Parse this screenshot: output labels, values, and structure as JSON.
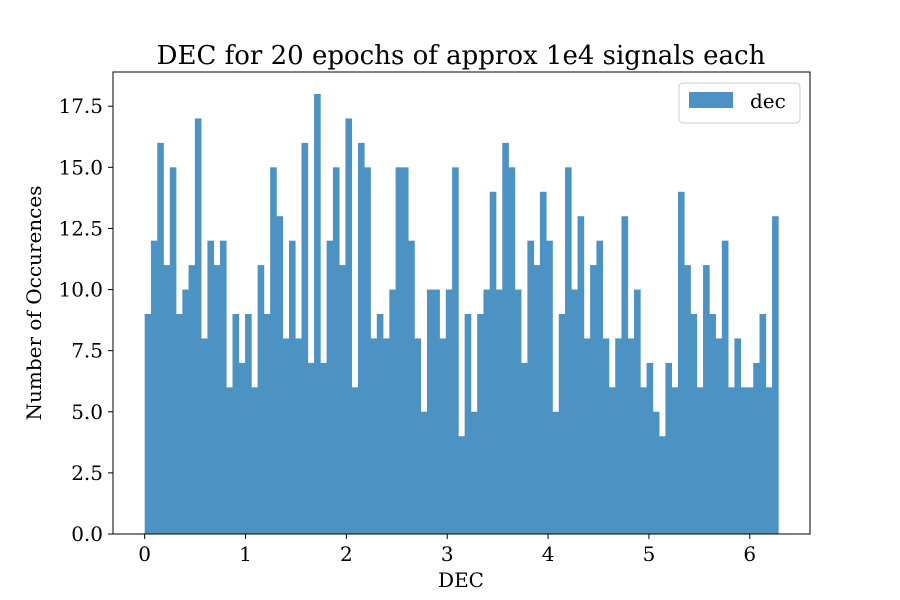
{
  "chart_data": {
    "type": "bar",
    "title": "DEC for 20 epochs of approx 1e4 signals each",
    "xlabel": "DEC",
    "ylabel": "Number of Occurences",
    "xlim": [
      -0.314,
      6.597
    ],
    "ylim": [
      0,
      18.9
    ],
    "x_ticks": [
      "0",
      "1",
      "2",
      "3",
      "4",
      "5",
      "6"
    ],
    "y_ticks": [
      "0.0",
      "2.5",
      "5.0",
      "7.5",
      "10.0",
      "12.5",
      "15.0",
      "17.5"
    ],
    "grid": false,
    "legend_position": "top-right",
    "bin_start": 0.0,
    "bin_end": 6.283,
    "series": [
      {
        "name": "dec",
        "color": "#4c93c4",
        "values": [
          9,
          12,
          16,
          11,
          15,
          9,
          10,
          11,
          17,
          8,
          12,
          11,
          12,
          6,
          9,
          7,
          9,
          6,
          11,
          9,
          15,
          13,
          8,
          12,
          8,
          16,
          7,
          18,
          7,
          12,
          15,
          11,
          17,
          6,
          16,
          15,
          8,
          9,
          8,
          10,
          15,
          15,
          12,
          8,
          5,
          10,
          10,
          8,
          10,
          15,
          4,
          9,
          5,
          9,
          10,
          14,
          10,
          16,
          15,
          10,
          7,
          12,
          11,
          14,
          12,
          5,
          9,
          15,
          10,
          13,
          8,
          11,
          12,
          8,
          6,
          8,
          13,
          8,
          10,
          6,
          7,
          5,
          4,
          7,
          6,
          14,
          11,
          9,
          6,
          11,
          9,
          8,
          12,
          6,
          8,
          6,
          6,
          7,
          9,
          6,
          13
        ]
      }
    ]
  }
}
